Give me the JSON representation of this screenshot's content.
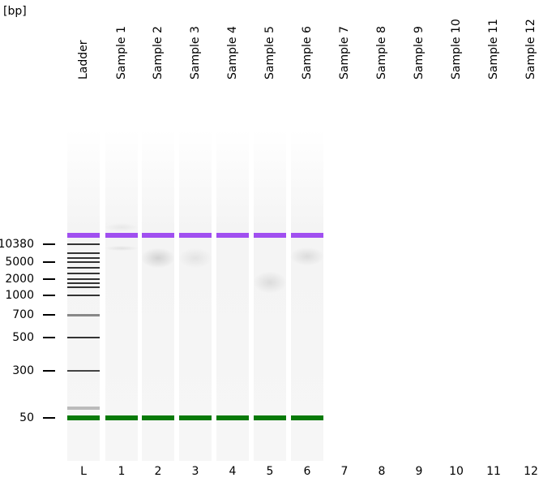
{
  "unit_label": "[bp]",
  "lanes": [
    {
      "name": "Ladder",
      "number": "L",
      "has_gel": true
    },
    {
      "name": "Sample 1",
      "number": "1",
      "has_gel": true
    },
    {
      "name": "Sample 2",
      "number": "2",
      "has_gel": true
    },
    {
      "name": "Sample 3",
      "number": "3",
      "has_gel": true
    },
    {
      "name": "Sample 4",
      "number": "4",
      "has_gel": true
    },
    {
      "name": "Sample 5",
      "number": "5",
      "has_gel": true
    },
    {
      "name": "Sample 6",
      "number": "6",
      "has_gel": true
    },
    {
      "name": "Sample 7",
      "number": "7",
      "has_gel": false
    },
    {
      "name": "Sample 8",
      "number": "8",
      "has_gel": false
    },
    {
      "name": "Sample 9",
      "number": "9",
      "has_gel": false
    },
    {
      "name": "Sample 10",
      "number": "10",
      "has_gel": false
    },
    {
      "name": "Sample 11",
      "number": "11",
      "has_gel": false
    },
    {
      "name": "Sample 12",
      "number": "12",
      "has_gel": false
    }
  ],
  "size_markers": [
    "10380",
    "5000",
    "2000",
    "1000",
    "700",
    "500",
    "300",
    "50"
  ],
  "colors": {
    "upper_marker": "#a04ff0",
    "lower_marker": "#087a08",
    "ladder_band": "#333333",
    "gel_background": "#f4f4f4"
  }
}
